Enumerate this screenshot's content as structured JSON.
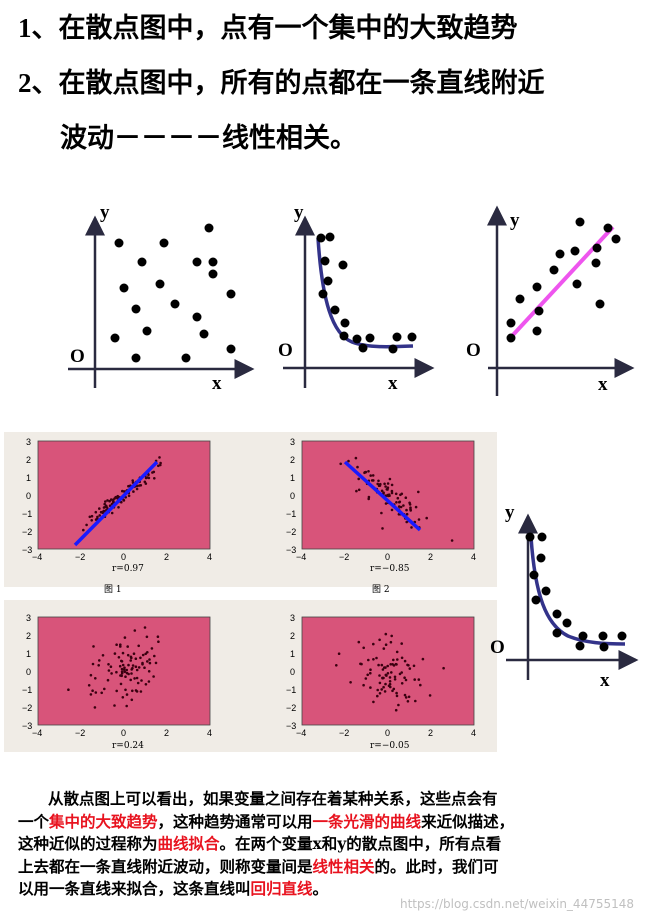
{
  "heading": {
    "line1_num": "1",
    "line1_text": "、在散点图中，点有一个集中的大致趋势",
    "line2_num": "2",
    "line2_text": "、在散点图中，所有的点都在一条直线附近",
    "line3_text": "波动－－－－线性相关。"
  },
  "axis_labels": {
    "x": "x",
    "y": "y",
    "origin": "O"
  },
  "panels": {
    "fig1_caption": "图 1",
    "fig2_caption": "图 2",
    "r1": "r=0.97",
    "r2": "r=−0.85",
    "r3": "r=0.24",
    "r4": "r=−0.05",
    "xticks": [
      "−4",
      "−2",
      "0",
      "2",
      "4"
    ],
    "yticks": [
      "3",
      "2",
      "1",
      "0",
      "−1",
      "−2",
      "−3"
    ]
  },
  "paragraph": {
    "l1": "从散点图上可以看出，如果变量之间存在着某种关系，这些点会有",
    "l2a": "一个",
    "l2b": "集中的大致趋势",
    "l2c": "，这种趋势通常可以用",
    "l2d": "一条光滑的曲线",
    "l2e": "来近似描述，",
    "l3a": "这种近似的过程称为",
    "l3b": "曲线拟合",
    "l3c": "。在两个变量x和y的散点图中，所有点看",
    "l4a": "上去都在一条直线附近波动，则称变量间是",
    "l4b": "线性相关",
    "l4c": "的。此时，我们可",
    "l5a": "以用一条直线来拟合，这条直线叫",
    "l5b": "回归直线",
    "l5c": "。"
  },
  "watermark": "https://blog.csdn.net/weixin_44755148",
  "colors": {
    "red": "#e8131f",
    "curve": "#2e2e8c",
    "line_pink": "#ee55ee",
    "fit_blue": "#1a1aff",
    "panel_pink": "#d8547a"
  }
}
